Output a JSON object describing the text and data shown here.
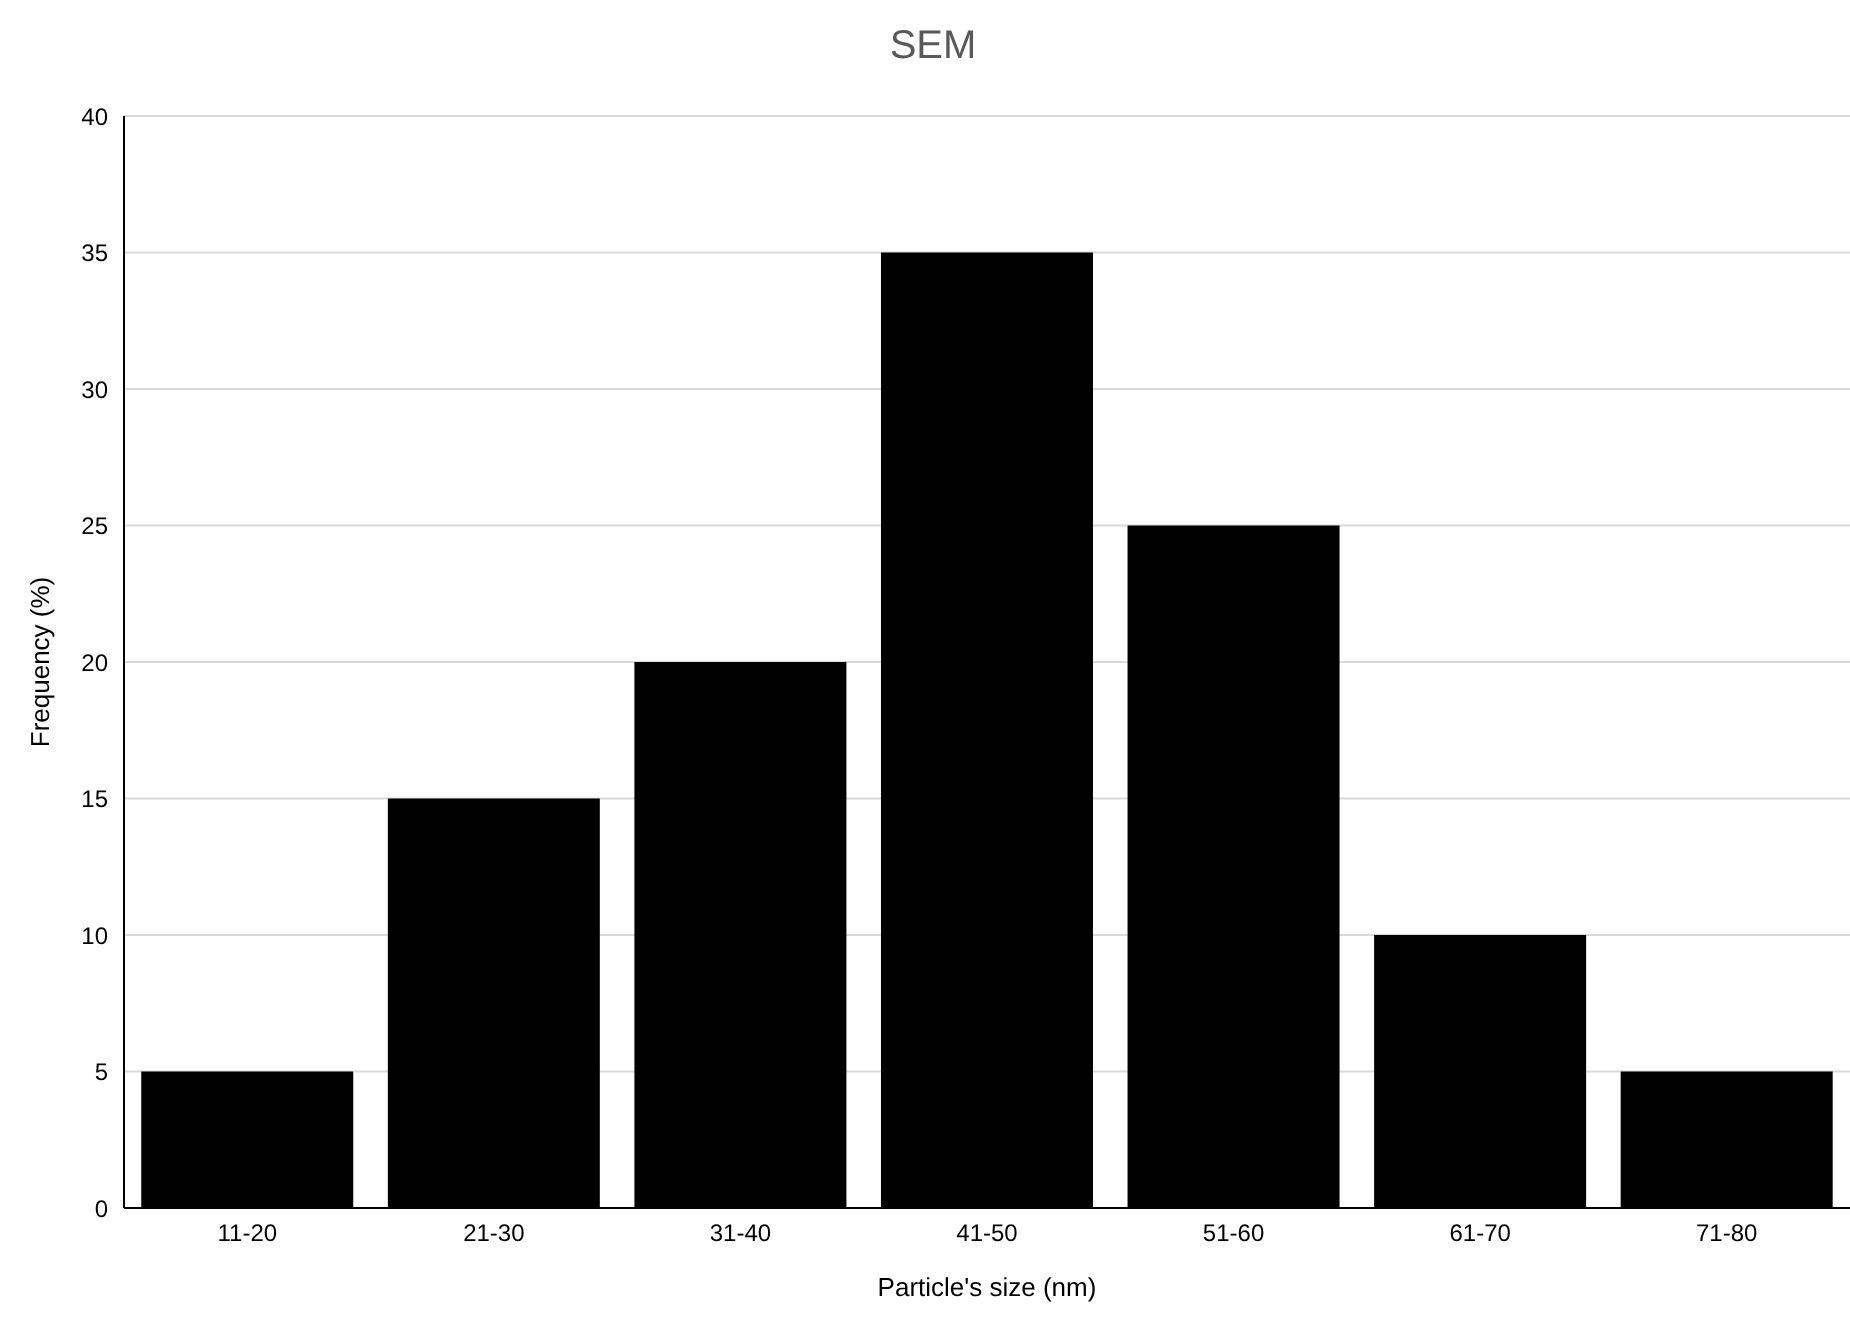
{
  "chart_data": {
    "type": "bar",
    "title": "SEM",
    "xlabel": "Particle's size (nm)",
    "ylabel": "Frequency (%)",
    "categories": [
      "11-20",
      "21-30",
      "31-40",
      "41-50",
      "51-60",
      "61-70",
      "71-80"
    ],
    "values": [
      5,
      15,
      20,
      35,
      25,
      10,
      5
    ],
    "color": "#000000",
    "ylim": [
      0,
      40
    ],
    "yticks": [
      0,
      5,
      10,
      15,
      20,
      25,
      30,
      35,
      40
    ],
    "grid": "y"
  }
}
